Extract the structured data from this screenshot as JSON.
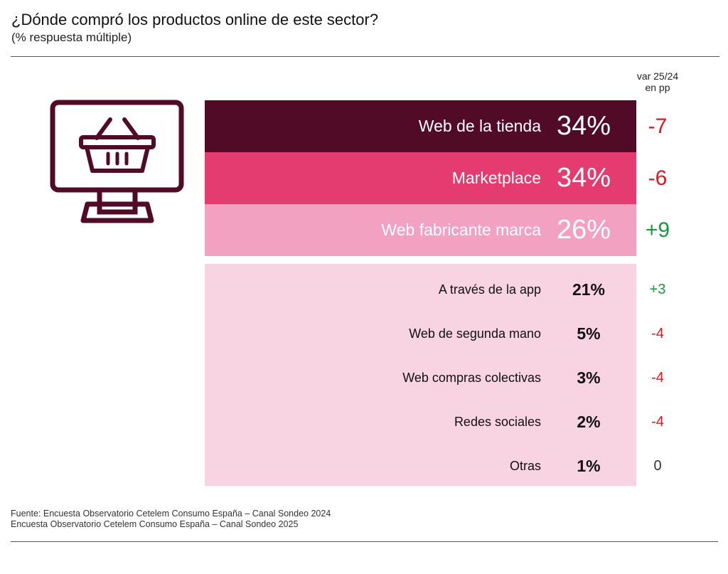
{
  "header": {
    "title": "¿Dónde compró los productos online de este sector?",
    "subtitle": "(% respuesta múltiple)",
    "var_label_line1": "var 25/24",
    "var_label_line2": "en pp"
  },
  "icon": "computer-basket-icon",
  "colors": {
    "row_1": "#520b26",
    "row_2": "#e43c70",
    "row_3": "#f2a1c1",
    "panel": "#f8d3e2",
    "negative": "#e0161f",
    "positive": "#169b3a",
    "neutral": "#333333"
  },
  "chart_data": {
    "type": "table",
    "title": "¿Dónde compró los productos online de este sector?",
    "subtitle": "(% respuesta múltiple)",
    "columns": [
      "",
      "",
      "var 25/24 en pp"
    ],
    "rows": [
      {
        "label": "Web de la tienda",
        "value": 34,
        "display": "34%",
        "var": -7,
        "var_display": "-7"
      },
      {
        "label": "Marketplace",
        "value": 34,
        "display": "34%",
        "var": -6,
        "var_display": "-6"
      },
      {
        "label": "Web fabricante marca",
        "value": 26,
        "display": "26%",
        "var": 9,
        "var_display": "+9"
      },
      {
        "label": "A través de la app",
        "value": 21,
        "display": "21%",
        "var": 3,
        "var_display": "+3"
      },
      {
        "label": "Web de segunda mano",
        "value": 5,
        "display": "5%",
        "var": -4,
        "var_display": "-4"
      },
      {
        "label": "Web compras colectivas",
        "value": 3,
        "display": "3%",
        "var": -4,
        "var_display": "-4"
      },
      {
        "label": "Redes sociales",
        "value": 2,
        "display": "2%",
        "var": -4,
        "var_display": "-4"
      },
      {
        "label": "Otras",
        "value": 1,
        "display": "1%",
        "var": 0,
        "var_display": "0"
      }
    ]
  },
  "footer": {
    "source_line1": "Fuente: Encuesta Observatorio Cetelem Consumo España – Canal Sondeo 2024",
    "source_line2": "Encuesta Observatorio Cetelem Consumo España – Canal Sondeo 2025"
  }
}
